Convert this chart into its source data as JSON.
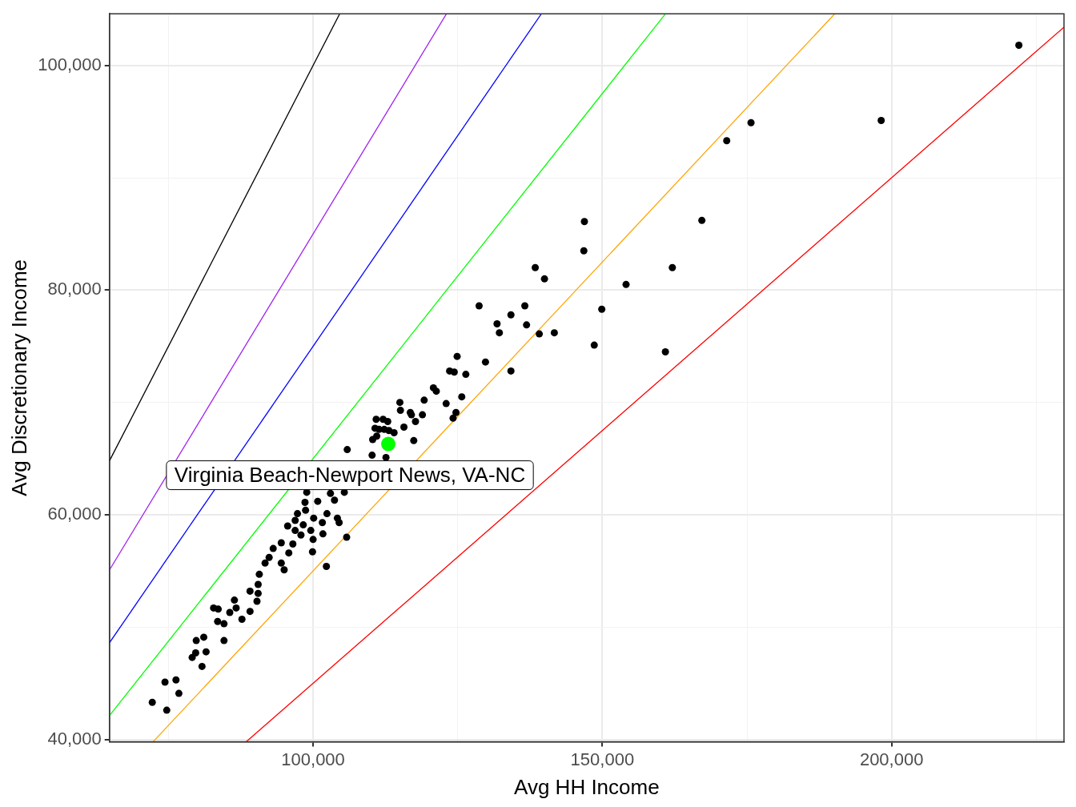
{
  "chart_data": {
    "type": "scatter",
    "xlabel": "Avg HH Income",
    "ylabel": "Avg Discretionary Income",
    "xlim": [
      64800,
      229800
    ],
    "ylim": [
      39800,
      104600
    ],
    "xticks": [
      {
        "value": 75000,
        "label": null
      },
      {
        "value": 100000,
        "label": "100,000"
      },
      {
        "value": 125000,
        "label": null
      },
      {
        "value": 150000,
        "label": "150,000"
      },
      {
        "value": 175000,
        "label": null
      },
      {
        "value": 200000,
        "label": "200,000"
      },
      {
        "value": 225000,
        "label": null
      }
    ],
    "yticks": [
      {
        "value": 40000,
        "label": "40,000"
      },
      {
        "value": 50000,
        "label": null
      },
      {
        "value": 60000,
        "label": "60,000"
      },
      {
        "value": 70000,
        "label": null
      },
      {
        "value": 80000,
        "label": "80,000"
      },
      {
        "value": 90000,
        "label": null
      },
      {
        "value": 100000,
        "label": "100,000"
      }
    ],
    "grid": true,
    "annotations": [
      {
        "text": "Virginia Beach-Newport News, VA-NC",
        "x": 113000,
        "y": 66300
      }
    ],
    "series": [
      {
        "type": "line",
        "color": "#000000",
        "marker": "none",
        "x": [
          64800,
          104600
        ],
        "values": [
          64800,
          104600
        ]
      },
      {
        "type": "line",
        "color": "#a020f0",
        "marker": "none",
        "x": [
          64800,
          123059
        ],
        "values": [
          55080,
          104600
        ]
      },
      {
        "type": "line",
        "color": "#0000ff",
        "marker": "none",
        "x": [
          64800,
          139467
        ],
        "values": [
          48600,
          104600
        ]
      },
      {
        "type": "line",
        "color": "#00ff00",
        "marker": "none",
        "x": [
          64800,
          160923
        ],
        "values": [
          42120,
          104600
        ]
      },
      {
        "type": "line",
        "color": "#ffa500",
        "marker": "none",
        "x": [
          72364,
          190182
        ],
        "values": [
          39800,
          104600
        ]
      },
      {
        "type": "line",
        "color": "#ff0000",
        "marker": "none",
        "x": [
          88444,
          229800
        ],
        "values": [
          39800,
          103410
        ]
      },
      {
        "color": "#000000",
        "marker": "circle",
        "x": [
          222000,
          198200,
          175700,
          171500,
          167200,
          162100,
          154100,
          149900,
          160900,
          148600,
          146900,
          146800,
          138400,
          140000,
          136600,
          134200,
          136900,
          141700,
          139100,
          131800,
          132200,
          128700,
          129800,
          134200,
          124900,
          123600,
          124400,
          126400,
          125700,
          120800,
          121300,
          119200,
          123000,
          124700,
          124200,
          115000,
          115100,
          116800,
          117000,
          118900,
          117700,
          115700,
          117400,
          110900,
          110700,
          112100,
          112900,
          114000,
          110300,
          111400,
          112300,
          113100,
          111000,
          105900,
          110200,
          112600,
          98900,
          103000,
          105400,
          103700,
          100800,
          98600,
          97300,
          98700,
          100100,
          102400,
          104200,
          104500,
          96900,
          101600,
          95600,
          98300,
          96900,
          97900,
          99600,
          101700,
          100000,
          105800,
          96500,
          94500,
          93100,
          95800,
          99900,
          94500,
          91700,
          92400,
          95000,
          90700,
          102300,
          90500,
          89100,
          90500,
          90300,
          86400,
          86700,
          85600,
          82800,
          83600,
          87700,
          83500,
          84600,
          89100,
          79800,
          81100,
          84600,
          79700,
          79100,
          81500,
          80800,
          74400,
          76300,
          76800,
          72200,
          74700
        ],
        "values": [
          101800,
          95100,
          94900,
          93300,
          86200,
          82000,
          80500,
          78300,
          74500,
          75100,
          86100,
          83500,
          82000,
          81000,
          78600,
          77800,
          76900,
          76200,
          76100,
          77000,
          76200,
          78600,
          73600,
          72800,
          74100,
          72800,
          72700,
          72500,
          70500,
          71300,
          71000,
          70200,
          69900,
          69100,
          68600,
          70000,
          69300,
          69100,
          68900,
          68900,
          68300,
          67800,
          66600,
          68500,
          67700,
          68500,
          68300,
          67300,
          66700,
          67600,
          67600,
          67500,
          67000,
          65800,
          65300,
          65100,
          62000,
          61900,
          62000,
          61300,
          61200,
          61100,
          60100,
          60400,
          59700,
          60100,
          59700,
          59300,
          59500,
          59300,
          59000,
          59100,
          58600,
          58200,
          58600,
          58300,
          57800,
          58000,
          57400,
          57500,
          57000,
          56600,
          56700,
          55700,
          55700,
          56200,
          55100,
          54700,
          55400,
          53800,
          53200,
          53000,
          52300,
          52400,
          51700,
          51300,
          51700,
          51600,
          50700,
          50500,
          50300,
          51400,
          48800,
          49100,
          48800,
          47700,
          47300,
          47800,
          46500,
          45100,
          45300,
          44100,
          43300,
          42600
        ]
      },
      {
        "color": "#00ff00",
        "marker": "circle",
        "x": [
          113000
        ],
        "values": [
          66300
        ]
      }
    ]
  }
}
